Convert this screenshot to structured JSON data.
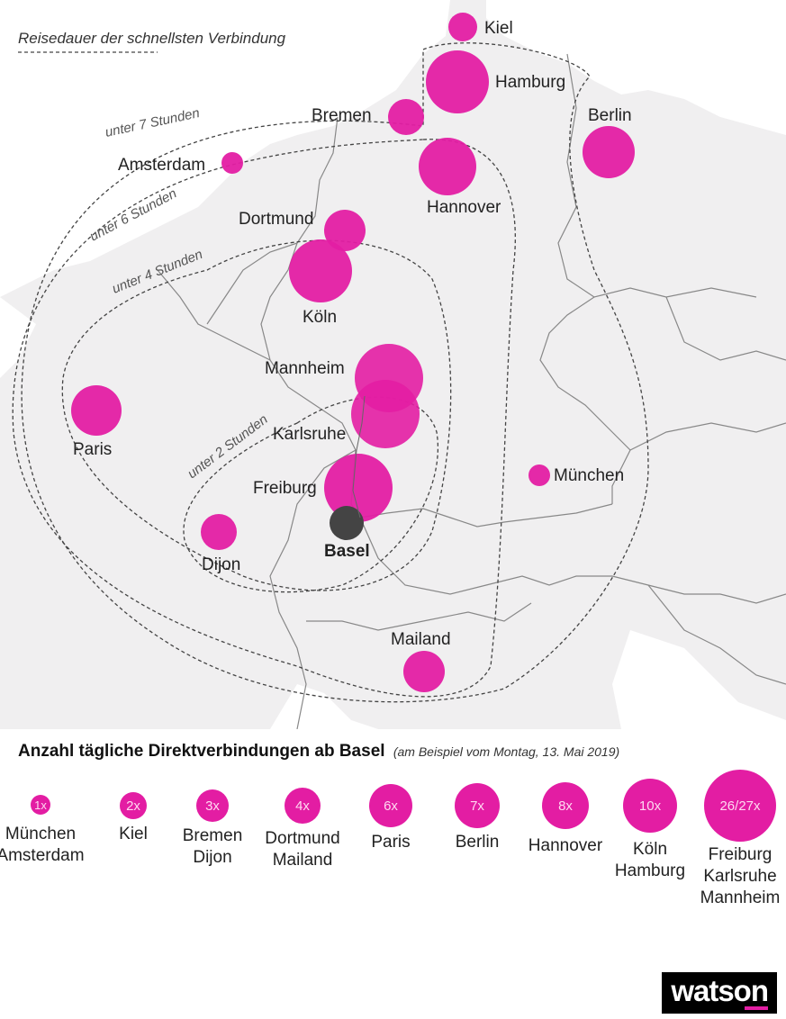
{
  "map": {
    "legend_text": "Reisedauer der schnellsten Verbindung",
    "zones": [
      {
        "id": "z7",
        "label": "unter 7 Stunden"
      },
      {
        "id": "z6",
        "label": "unter 6 Stunden"
      },
      {
        "id": "z4",
        "label": "unter 4 Stunden"
      },
      {
        "id": "z2",
        "label": "unter 2 Stunden"
      }
    ],
    "origin": {
      "name": "Basel",
      "color": "#444444"
    },
    "bubble_color": "#e31da3",
    "cities": [
      {
        "name": "Kiel",
        "daily_connections": "2x"
      },
      {
        "name": "Hamburg",
        "daily_connections": "10x"
      },
      {
        "name": "Bremen",
        "daily_connections": "3x"
      },
      {
        "name": "Berlin",
        "daily_connections": "7x"
      },
      {
        "name": "Amsterdam",
        "daily_connections": "1x"
      },
      {
        "name": "Hannover",
        "daily_connections": "8x"
      },
      {
        "name": "Dortmund",
        "daily_connections": "4x"
      },
      {
        "name": "Köln",
        "daily_connections": "10x"
      },
      {
        "name": "Mannheim",
        "daily_connections": "26/27x"
      },
      {
        "name": "Karlsruhe",
        "daily_connections": "26/27x"
      },
      {
        "name": "Paris",
        "daily_connections": "6x"
      },
      {
        "name": "München",
        "daily_connections": "1x"
      },
      {
        "name": "Freiburg",
        "daily_connections": "26/27x"
      },
      {
        "name": "Dijon",
        "daily_connections": "3x"
      },
      {
        "name": "Mailand",
        "daily_connections": "4x"
      }
    ]
  },
  "legend": {
    "title": "Anzahl tägliche Direktverbindungen ab Basel",
    "subtitle": "(am Beispiel vom Montag, 13. Mai 2019)",
    "items": [
      {
        "count": "1x",
        "cities": [
          "München",
          "Amsterdam"
        ]
      },
      {
        "count": "2x",
        "cities": [
          "Kiel"
        ]
      },
      {
        "count": "3x",
        "cities": [
          "Bremen",
          "Dijon"
        ]
      },
      {
        "count": "4x",
        "cities": [
          "Dortmund",
          "Mailand"
        ]
      },
      {
        "count": "6x",
        "cities": [
          "Paris"
        ]
      },
      {
        "count": "7x",
        "cities": [
          "Berlin"
        ]
      },
      {
        "count": "8x",
        "cities": [
          "Hannover"
        ]
      },
      {
        "count": "10x",
        "cities": [
          "Köln",
          "Hamburg"
        ]
      },
      {
        "count": "26/27x",
        "cities": [
          "Freiburg",
          "Karlsruhe",
          "Mannheim"
        ]
      }
    ]
  },
  "brand": {
    "logo": "watson",
    "accent": "#e31da3"
  }
}
